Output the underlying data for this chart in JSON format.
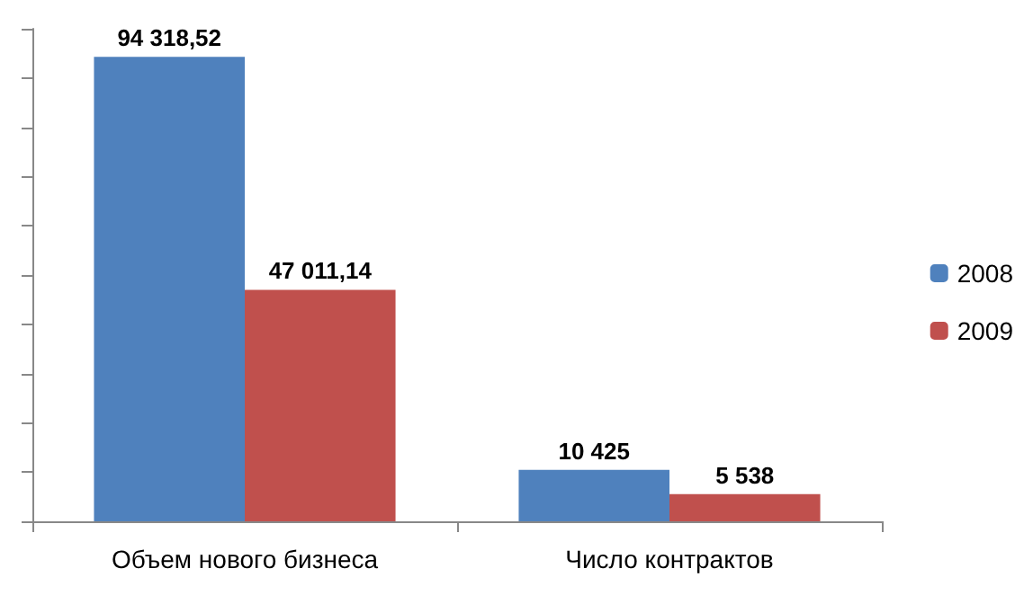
{
  "chart_data": {
    "type": "bar",
    "categories": [
      "Объем нового бизнеса",
      "Число контрактов"
    ],
    "series": [
      {
        "name": "2008",
        "color": "#4f81bd",
        "values": [
          94318.52,
          10425
        ],
        "value_labels": [
          "94 318,52",
          "10 425"
        ]
      },
      {
        "name": "2009",
        "color": "#c0504d",
        "values": [
          47011.14,
          5538
        ],
        "value_labels": [
          "47 011,14",
          "5 538"
        ]
      }
    ],
    "ylim": [
      0,
      100000
    ],
    "yticks": [
      {
        "value": 0,
        "label": null
      },
      {
        "value": 10000,
        "label": null
      },
      {
        "value": 20000,
        "label": null
      },
      {
        "value": 30000,
        "label": null
      },
      {
        "value": 40000,
        "label": null
      },
      {
        "value": 50000,
        "label": null
      },
      {
        "value": 60000,
        "label": null
      },
      {
        "value": 70000,
        "label": null
      },
      {
        "value": 80000,
        "label": null
      },
      {
        "value": 90000,
        "label": null
      },
      {
        "value": 100000,
        "label": null
      }
    ],
    "tick_labels": "x",
    "grid": false,
    "legend": "right"
  }
}
